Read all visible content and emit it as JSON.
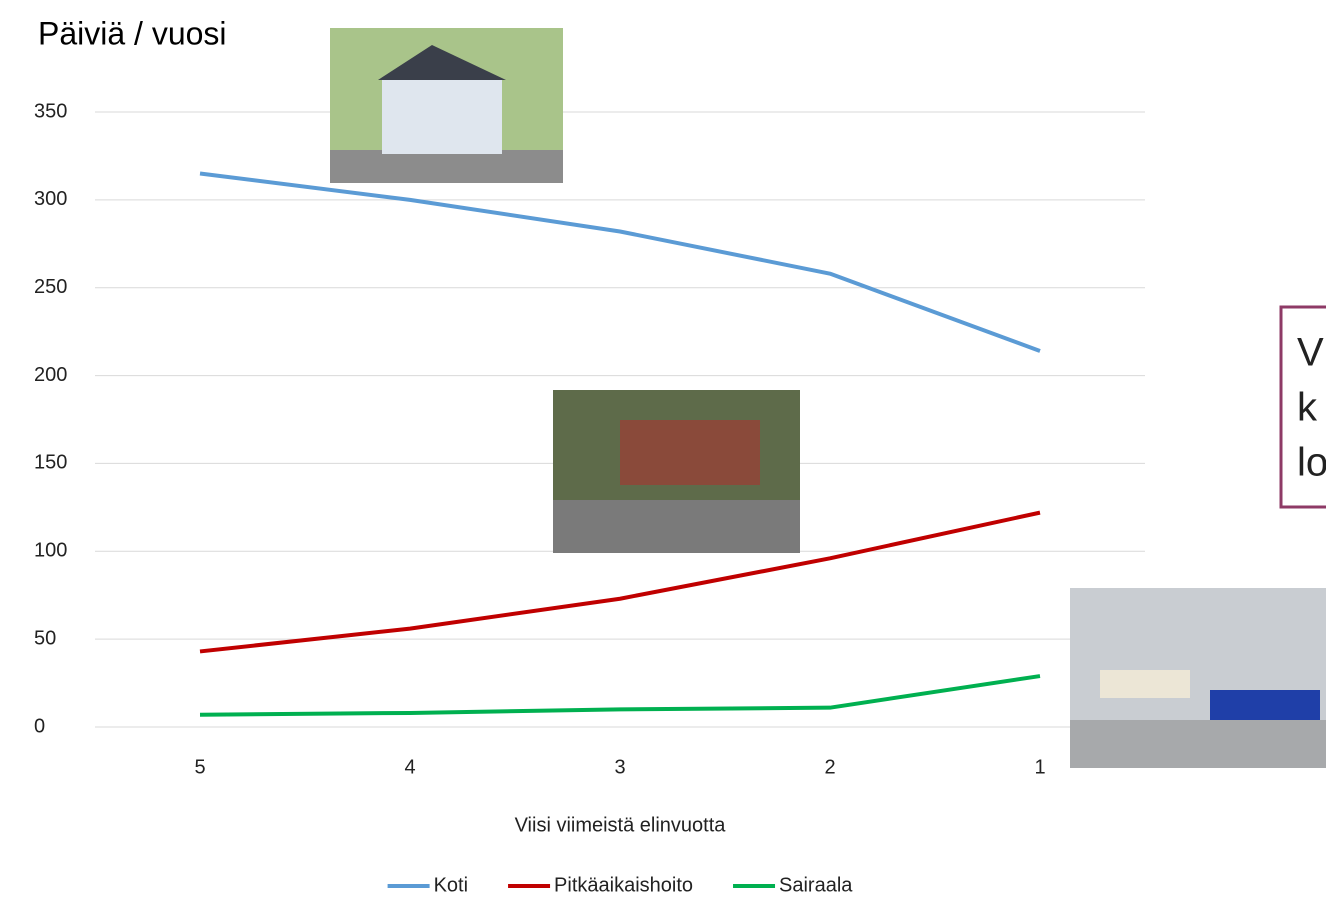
{
  "chart_data": {
    "type": "line",
    "title": "Päiviä / vuosi",
    "x_label": "Viisi viimeistä elinvuotta",
    "categories": [
      "5",
      "4",
      "3",
      "2",
      "1"
    ],
    "series": [
      {
        "name": "Koti",
        "color": "#5b9bd5",
        "values": [
          315,
          300,
          282,
          258,
          214
        ]
      },
      {
        "name": "Pitkäaikaishoito",
        "color": "#c00000",
        "values": [
          43,
          56,
          73,
          96,
          122
        ]
      },
      {
        "name": "Sairaala",
        "color": "#00b050",
        "values": [
          7,
          8,
          10,
          11,
          29
        ]
      }
    ],
    "ylim": [
      0,
      350
    ],
    "yticks": [
      0,
      50,
      100,
      150,
      200,
      250,
      300,
      350
    ],
    "grid": true,
    "legend": "bottom",
    "annotation": [
      "V",
      "k",
      "lo"
    ]
  }
}
